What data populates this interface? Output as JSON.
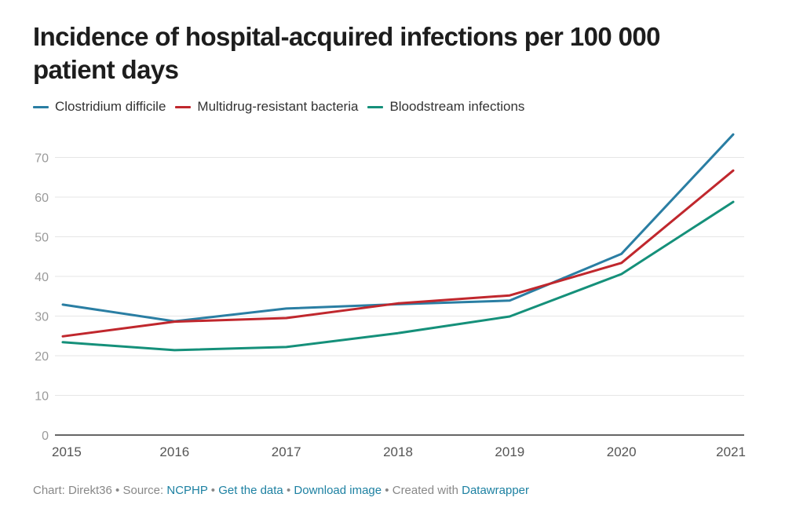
{
  "header": {
    "title": "Incidence of hospital-acquired infections per 100 000 patient days"
  },
  "chart_data": {
    "type": "line",
    "title": "Incidence of hospital-acquired infections per 100 000 patient days",
    "xlabel": "",
    "ylabel": "",
    "x": [
      "2015",
      "2016",
      "2017",
      "2018",
      "2019",
      "2020",
      "2021"
    ],
    "ylim": [
      0,
      75
    ],
    "yticks": [
      0,
      10,
      20,
      30,
      40,
      50,
      60,
      70
    ],
    "grid": true,
    "legend_position": "top-left",
    "series": [
      {
        "name": "Clostridium difficile",
        "color": "#2a7ea3",
        "values": [
          32.9,
          28.7,
          31.9,
          33.0,
          33.9,
          45.7,
          75.8
        ]
      },
      {
        "name": "Multidrug-resistant bacteria",
        "color": "#c0272d",
        "values": [
          24.9,
          28.6,
          29.5,
          33.2,
          35.2,
          43.4,
          66.7
        ]
      },
      {
        "name": "Bloodstream infections",
        "color": "#15907a",
        "values": [
          23.4,
          21.4,
          22.2,
          25.7,
          29.9,
          40.6,
          58.8
        ]
      }
    ]
  },
  "footer": {
    "chart_prefix": "Chart: Direkt36",
    "source_prefix": "Source:",
    "source_link": "NCPHP",
    "get_data": "Get the data",
    "download": "Download image",
    "created_prefix": "Created with",
    "created_link": "Datawrapper",
    "separator": "•"
  }
}
